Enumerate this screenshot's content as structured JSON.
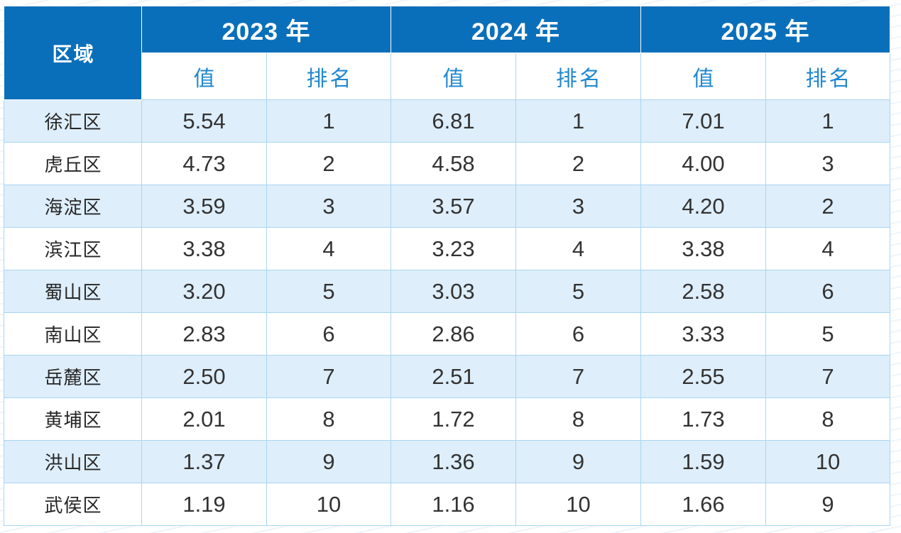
{
  "colors": {
    "header_blue": "#0a6fba",
    "header_text": "#ffffff",
    "subheader_text": "#2188d0",
    "stripe_row": "#deeefa",
    "grid_line": "#aad6f2",
    "body_text": "#333333"
  },
  "chart_data": {
    "type": "table",
    "columns": {
      "region": "区域",
      "groups": [
        {
          "label": "2023 年",
          "subcolumns": [
            "值",
            "排名"
          ]
        },
        {
          "label": "2024 年",
          "subcolumns": [
            "值",
            "排名"
          ]
        },
        {
          "label": "2025 年",
          "subcolumns": [
            "值",
            "排名"
          ]
        }
      ]
    },
    "rows": [
      {
        "region": "徐汇区",
        "years": [
          {
            "value": "5.54",
            "rank": 1
          },
          {
            "value": "6.81",
            "rank": 1
          },
          {
            "value": "7.01",
            "rank": 1
          }
        ]
      },
      {
        "region": "虎丘区",
        "years": [
          {
            "value": "4.73",
            "rank": 2
          },
          {
            "value": "4.58",
            "rank": 2
          },
          {
            "value": "4.00",
            "rank": 3
          }
        ]
      },
      {
        "region": "海淀区",
        "years": [
          {
            "value": "3.59",
            "rank": 3
          },
          {
            "value": "3.57",
            "rank": 3
          },
          {
            "value": "4.20",
            "rank": 2
          }
        ]
      },
      {
        "region": "滨江区",
        "years": [
          {
            "value": "3.38",
            "rank": 4
          },
          {
            "value": "3.23",
            "rank": 4
          },
          {
            "value": "3.38",
            "rank": 4
          }
        ]
      },
      {
        "region": "蜀山区",
        "years": [
          {
            "value": "3.20",
            "rank": 5
          },
          {
            "value": "3.03",
            "rank": 5
          },
          {
            "value": "2.58",
            "rank": 6
          }
        ]
      },
      {
        "region": "南山区",
        "years": [
          {
            "value": "2.83",
            "rank": 6
          },
          {
            "value": "2.86",
            "rank": 6
          },
          {
            "value": "3.33",
            "rank": 5
          }
        ]
      },
      {
        "region": "岳麓区",
        "years": [
          {
            "value": "2.50",
            "rank": 7
          },
          {
            "value": "2.51",
            "rank": 7
          },
          {
            "value": "2.55",
            "rank": 7
          }
        ]
      },
      {
        "region": "黄埔区",
        "years": [
          {
            "value": "2.01",
            "rank": 8
          },
          {
            "value": "1.72",
            "rank": 8
          },
          {
            "value": "1.73",
            "rank": 8
          }
        ]
      },
      {
        "region": "洪山区",
        "years": [
          {
            "value": "1.37",
            "rank": 9
          },
          {
            "value": "1.36",
            "rank": 9
          },
          {
            "value": "1.59",
            "rank": 10
          }
        ]
      },
      {
        "region": "武侯区",
        "years": [
          {
            "value": "1.19",
            "rank": 10
          },
          {
            "value": "1.16",
            "rank": 10
          },
          {
            "value": "1.66",
            "rank": 9
          }
        ]
      }
    ]
  }
}
